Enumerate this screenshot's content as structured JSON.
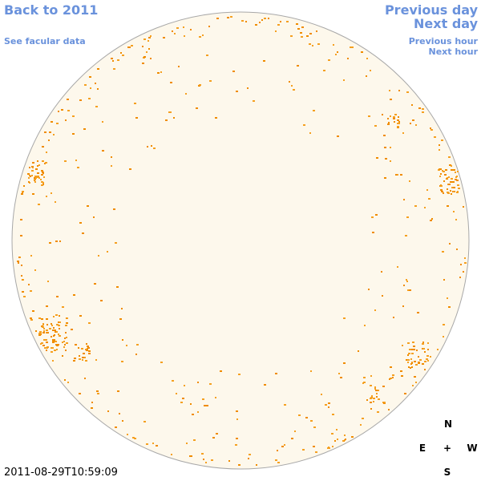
{
  "navigation": {
    "back": "Back to 2011",
    "facular": "See facular data",
    "previous_day": "Previous day",
    "next_day": "Next day",
    "previous_hour": "Previous hour",
    "next_hour": "Next hour"
  },
  "compass": {
    "north": "N",
    "east": "E",
    "center": "+",
    "west": "W",
    "south": "S"
  },
  "timestamp": "2011-08-29T10:59:09"
}
